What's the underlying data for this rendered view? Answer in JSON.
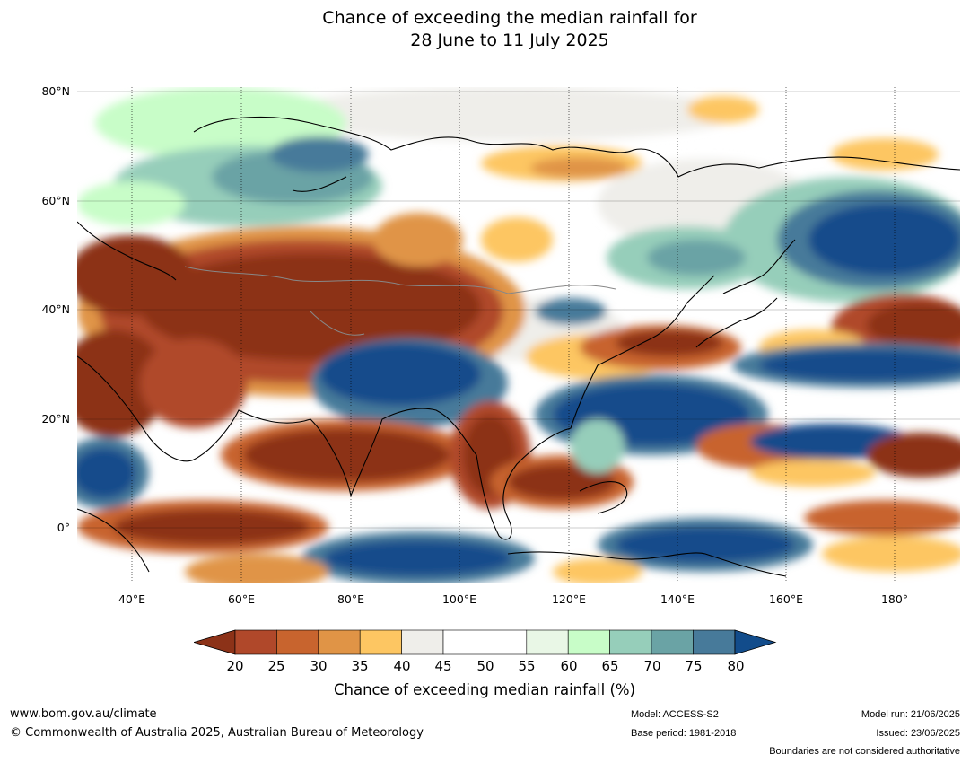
{
  "title": {
    "line1": "Chance of exceeding the median rainfall for",
    "line2": "28 June to 11 July 2025"
  },
  "map": {
    "region": "Asia and western Pacific",
    "lat_labels": [
      "80°N",
      "60°N",
      "40°N",
      "20°N",
      "0°"
    ],
    "lon_labels": [
      "40°E",
      "60°E",
      "80°E",
      "100°E",
      "120°E",
      "140°E",
      "160°E",
      "180°"
    ],
    "lon_range": [
      30,
      192
    ],
    "lat_range": [
      -10,
      81
    ]
  },
  "colorbar": {
    "label": "Chance of exceeding median rainfall (%)",
    "ticks": [
      "20",
      "25",
      "30",
      "35",
      "40",
      "45",
      "50",
      "55",
      "60",
      "65",
      "70",
      "75",
      "80"
    ],
    "colors": [
      "#8c3218",
      "#b0482a",
      "#c8642e",
      "#e09446",
      "#fdc662",
      "#efeeea",
      "#ffffff",
      "#ffffff",
      "#e9f7e6",
      "#c8fdc8",
      "#96ceba",
      "#6aa3a5",
      "#477a9a",
      "#124c8b"
    ]
  },
  "footer": {
    "website": "www.bom.gov.au/climate",
    "copyright": "© Commonwealth of Australia 2025, Australian Bureau of Meteorology",
    "model": "Model: ACCESS-S2",
    "base_period": "Base period: 1981-2018",
    "model_run": "Model run: 21/06/2025",
    "issued": "Issued: 23/06/2025",
    "boundaries": "Boundaries are not considered authoritative"
  }
}
